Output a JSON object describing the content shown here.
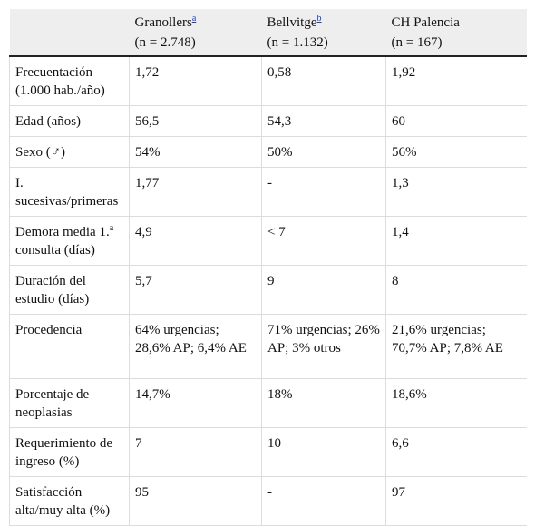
{
  "headers": [
    {
      "name": "",
      "sup": "",
      "n": ""
    },
    {
      "name": "Granollers",
      "sup": "a",
      "n": "(n = 2.748)"
    },
    {
      "name": "Bellvitge",
      "sup": "b",
      "n": "(n = 1.132)"
    },
    {
      "name": "CH Palencia",
      "sup": "",
      "n": "(n = 167)"
    }
  ],
  "rows": [
    {
      "label": "Frecuentación (1.000 hab./año)",
      "label_sup": "",
      "label_tail": "",
      "values": [
        "1,72",
        "0,58",
        "1,92"
      ]
    },
    {
      "label": "Edad (años)",
      "label_sup": "",
      "label_tail": "",
      "values": [
        "56,5",
        "54,3",
        "60"
      ]
    },
    {
      "label": "Sexo (♂)",
      "label_sup": "",
      "label_tail": "",
      "values": [
        "54%",
        "50%",
        "56%"
      ]
    },
    {
      "label": "I. sucesivas/primeras",
      "label_sup": "",
      "label_tail": "",
      "values": [
        "1,77",
        "-",
        "1,3"
      ]
    },
    {
      "label": "Demora media 1.",
      "label_sup": "a",
      "label_tail": " consulta (días)",
      "values": [
        "4,9",
        "< 7",
        "1,4"
      ]
    },
    {
      "label": "Duración del estudio (días)",
      "label_sup": "",
      "label_tail": "",
      "values": [
        "5,7",
        "9",
        "8"
      ]
    },
    {
      "label": "Procedencia",
      "label_sup": "",
      "label_tail": "",
      "values": [
        "64% urgencias; 28,6% AP; 6,4% AE",
        "71% urgencias; 26% AP; 3% otros",
        "21,6% urgencias; 70,7% AP; 7,8% AE"
      ]
    },
    {
      "label": "Porcentaje de neoplasias",
      "label_sup": "",
      "label_tail": "",
      "values": [
        "14,7%",
        "18%",
        "18,6%"
      ]
    },
    {
      "label": "Requerimiento de ingreso (%)",
      "label_sup": "",
      "label_tail": "",
      "values": [
        "7",
        "10",
        "6,6"
      ]
    },
    {
      "label": "Satisfacción alta/muy alta (%)",
      "label_sup": "",
      "label_tail": "",
      "values": [
        "95",
        "-",
        "97"
      ]
    }
  ]
}
